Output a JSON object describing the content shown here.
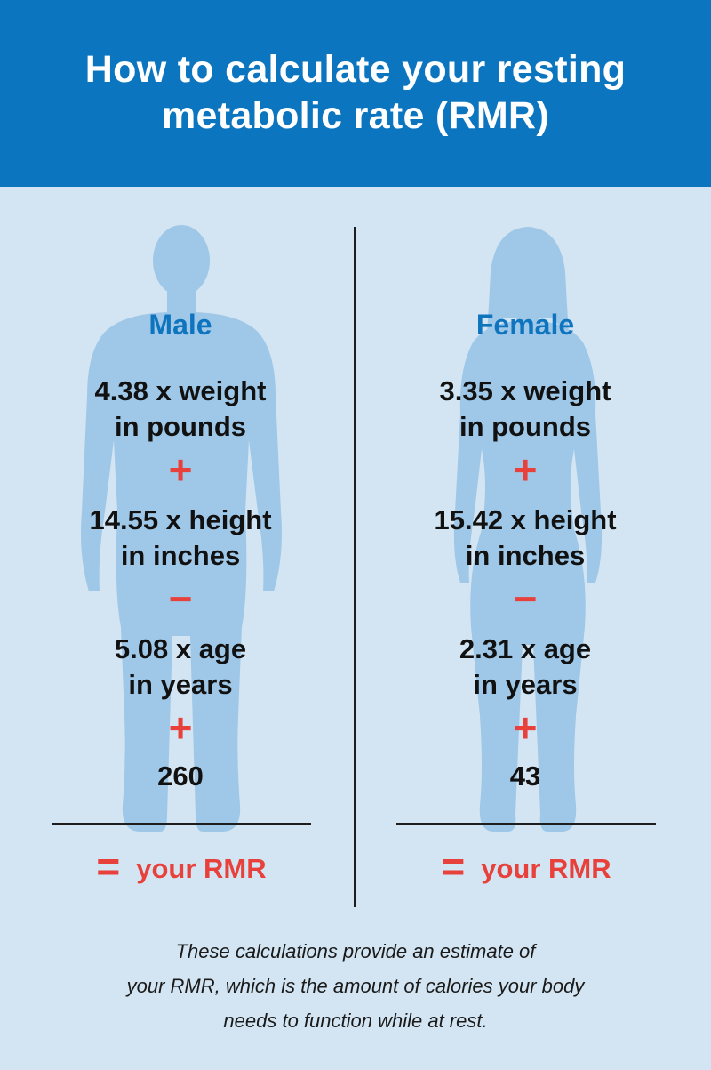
{
  "header": {
    "title_line1": "How to calculate your resting",
    "title_line2": "metabolic rate (RMR)",
    "background": "#0b75bf"
  },
  "colors": {
    "page_background": "#d3e5f2",
    "silhouette": "#9fc8e8",
    "heading_blue": "#0f74be",
    "operator_red": "#e8413b"
  },
  "male": {
    "label": "Male",
    "icon": "male-silhouette-icon",
    "weight_line1": "4.38 x weight",
    "weight_line2": "in pounds",
    "op1": "+",
    "height_line1": "14.55 x height",
    "height_line2": "in inches",
    "op2": "−",
    "age_line1": "5.08 x age",
    "age_line2": "in years",
    "op3": "+",
    "constant": "260",
    "equals": "=",
    "result": "your RMR"
  },
  "female": {
    "label": "Female",
    "icon": "female-silhouette-icon",
    "weight_line1": "3.35 x weight",
    "weight_line2": "in pounds",
    "op1": "+",
    "height_line1": "15.42 x height",
    "height_line2": "in inches",
    "op2": "−",
    "age_line1": "2.31 x age",
    "age_line2": "in years",
    "op3": "+",
    "constant": "43",
    "equals": "=",
    "result": "your RMR"
  },
  "footnote": {
    "line1": "These calculations provide an estimate of",
    "line2": "your RMR, which is the amount of calories your body",
    "line3": "needs to function while at rest."
  }
}
